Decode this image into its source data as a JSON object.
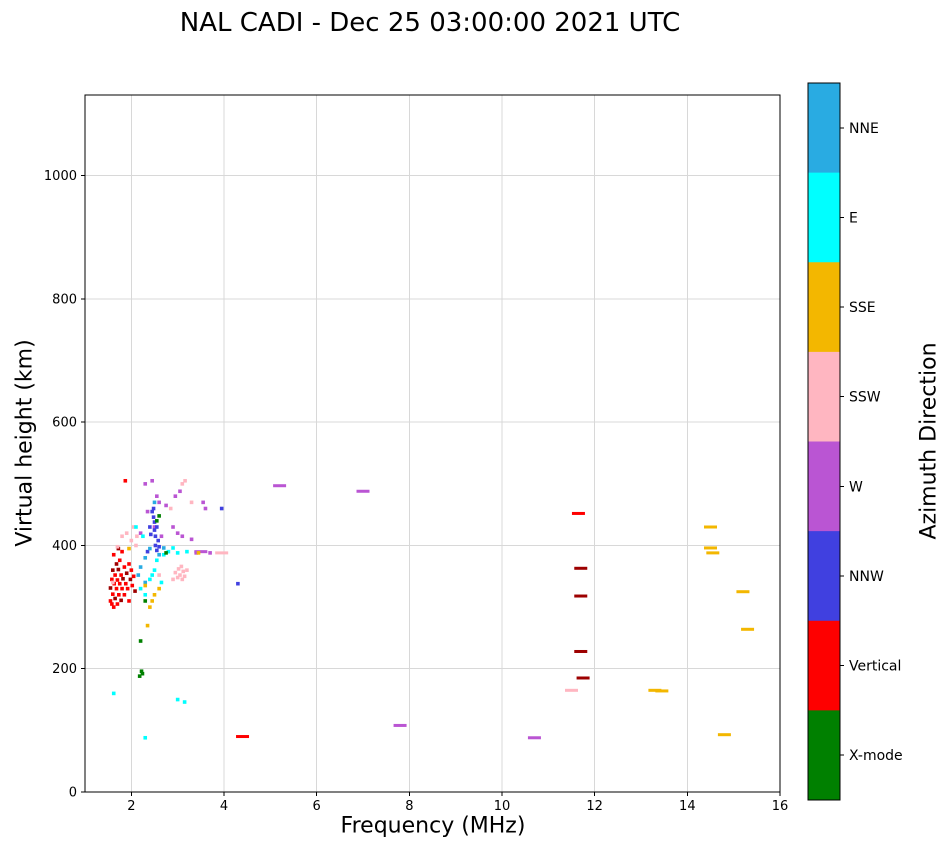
{
  "chart_data": {
    "type": "scatter",
    "title": "NAL CADI - Dec 25 03:00:00 2021 UTC",
    "xlabel": "Frequency (MHz)",
    "ylabel": "Virtual height (km)",
    "xlim": [
      1,
      16
    ],
    "ylim": [
      0,
      1131
    ],
    "xticks": [
      2,
      4,
      6,
      8,
      10,
      12,
      14,
      16
    ],
    "yticks": [
      0,
      200,
      400,
      600,
      800,
      1000
    ],
    "grid": true,
    "grid_color": "#d8d8d8",
    "colorbar": {
      "label": "Azimuth Direction",
      "categories": [
        "NNE",
        "E",
        "SSE",
        "SSW",
        "W",
        "NNW",
        "Vertical",
        "X-mode"
      ],
      "colors": {
        "NNE": "#29ABE2",
        "E": "#00FFFF",
        "SSE": "#F3B700",
        "SSW": "#FFB6C1",
        "W": "#BA55D3",
        "NNW": "#4040E0",
        "Vertical": "#FE0000",
        "X-mode": "#008000"
      }
    },
    "points": [
      [
        5.2,
        497,
        "W",
        "d"
      ],
      [
        7.0,
        488,
        "W",
        "d"
      ],
      [
        7.8,
        108,
        "W",
        "d"
      ],
      [
        10.7,
        88,
        "W",
        "d"
      ],
      [
        11.5,
        165,
        "SSW",
        "d"
      ],
      [
        11.65,
        452,
        "Vertical",
        "d"
      ],
      [
        11.7,
        363,
        "Vertical",
        "d",
        "dk"
      ],
      [
        11.7,
        318,
        "Vertical",
        "d",
        "dk"
      ],
      [
        11.7,
        228,
        "Vertical",
        "d",
        "dk"
      ],
      [
        11.75,
        185,
        "Vertical",
        "d",
        "dk"
      ],
      [
        13.3,
        165,
        "SSE",
        "d"
      ],
      [
        13.45,
        164,
        "SSE",
        "d"
      ],
      [
        14.5,
        430,
        "SSE",
        "d"
      ],
      [
        14.5,
        396,
        "SSE",
        "d"
      ],
      [
        14.55,
        388,
        "SSE",
        "d"
      ],
      [
        15.2,
        325,
        "SSE",
        "d"
      ],
      [
        15.3,
        264,
        "SSE",
        "d"
      ],
      [
        14.8,
        93,
        "SSE",
        "d"
      ],
      [
        4.4,
        90,
        "Vertical",
        "d"
      ],
      [
        4.3,
        338,
        "NNW"
      ],
      [
        2.3,
        88,
        "E"
      ],
      [
        1.62,
        160,
        "E"
      ],
      [
        3.0,
        150,
        "E"
      ],
      [
        3.15,
        146,
        "E"
      ],
      [
        2.2,
        245,
        "X-mode"
      ],
      [
        2.18,
        188,
        "X-mode"
      ],
      [
        2.24,
        192,
        "X-mode"
      ],
      [
        2.22,
        196,
        "X-mode"
      ],
      [
        2.35,
        270,
        "SSE"
      ],
      [
        1.55,
        310,
        "Vertical"
      ],
      [
        1.55,
        331,
        "Vertical",
        "dk"
      ],
      [
        1.58,
        345,
        "Vertical"
      ],
      [
        1.58,
        305,
        "Vertical"
      ],
      [
        1.6,
        321,
        "Vertical"
      ],
      [
        1.6,
        360,
        "Vertical",
        "dk"
      ],
      [
        1.62,
        300,
        "Vertical"
      ],
      [
        1.62,
        385,
        "Vertical"
      ],
      [
        1.63,
        338,
        "Vertical"
      ],
      [
        1.65,
        314,
        "Vertical",
        "dk"
      ],
      [
        1.65,
        352,
        "Vertical"
      ],
      [
        1.68,
        330,
        "Vertical"
      ],
      [
        1.68,
        370,
        "Vertical",
        "dk"
      ],
      [
        1.7,
        305,
        "Vertical"
      ],
      [
        1.7,
        344,
        "Vertical"
      ],
      [
        1.72,
        361,
        "Vertical",
        "dk"
      ],
      [
        1.72,
        395,
        "Vertical",
        "dk"
      ],
      [
        1.73,
        320,
        "Vertical"
      ],
      [
        1.75,
        338,
        "Vertical"
      ],
      [
        1.75,
        376,
        "Vertical"
      ],
      [
        1.78,
        311,
        "Vertical",
        "dk"
      ],
      [
        1.78,
        352,
        "Vertical"
      ],
      [
        1.8,
        330,
        "Vertical"
      ],
      [
        1.8,
        390,
        "Vertical"
      ],
      [
        1.82,
        346,
        "Vertical",
        "dk"
      ],
      [
        1.85,
        320,
        "Vertical"
      ],
      [
        1.85,
        365,
        "Vertical"
      ],
      [
        1.87,
        505,
        "Vertical"
      ],
      [
        1.88,
        338,
        "Vertical"
      ],
      [
        1.9,
        355,
        "Vertical",
        "dk"
      ],
      [
        1.92,
        330,
        "Vertical"
      ],
      [
        1.95,
        310,
        "Vertical"
      ],
      [
        1.95,
        370,
        "Vertical"
      ],
      [
        1.98,
        345,
        "Vertical",
        "dk"
      ],
      [
        2.0,
        360,
        "Vertical"
      ],
      [
        2.02,
        335,
        "Vertical"
      ],
      [
        2.05,
        350,
        "Vertical"
      ],
      [
        2.08,
        326,
        "Vertical",
        "dk"
      ],
      [
        1.6,
        340,
        "SSW"
      ],
      [
        1.7,
        398,
        "SSW"
      ],
      [
        1.8,
        415,
        "SSW"
      ],
      [
        1.9,
        420,
        "SSW"
      ],
      [
        2.0,
        408,
        "SSW"
      ],
      [
        2.05,
        430,
        "SSW"
      ],
      [
        2.1,
        400,
        "SSW"
      ],
      [
        2.12,
        415,
        "SSW"
      ],
      [
        2.6,
        352,
        "SSW"
      ],
      [
        2.85,
        460,
        "SSW"
      ],
      [
        2.9,
        345,
        "SSW"
      ],
      [
        2.95,
        356,
        "SSW"
      ],
      [
        3.0,
        348,
        "SSW"
      ],
      [
        3.02,
        362,
        "SSW"
      ],
      [
        3.05,
        352,
        "SSW"
      ],
      [
        3.08,
        366,
        "SSW"
      ],
      [
        3.1,
        345,
        "SSW"
      ],
      [
        3.1,
        500,
        "SSW"
      ],
      [
        3.12,
        358,
        "SSW"
      ],
      [
        3.15,
        350,
        "SSW"
      ],
      [
        3.16,
        505,
        "SSW"
      ],
      [
        3.2,
        360,
        "SSW"
      ],
      [
        3.3,
        470,
        "SSW"
      ],
      [
        3.95,
        388,
        "SSW",
        "d"
      ],
      [
        2.2,
        420,
        "W"
      ],
      [
        2.3,
        500,
        "W"
      ],
      [
        2.35,
        455,
        "W"
      ],
      [
        2.45,
        505,
        "W"
      ],
      [
        2.5,
        430,
        "W"
      ],
      [
        2.55,
        480,
        "W"
      ],
      [
        2.6,
        470,
        "W"
      ],
      [
        2.65,
        415,
        "W"
      ],
      [
        2.75,
        465,
        "W"
      ],
      [
        2.9,
        430,
        "W"
      ],
      [
        2.95,
        480,
        "W"
      ],
      [
        3.0,
        420,
        "W"
      ],
      [
        3.05,
        488,
        "W"
      ],
      [
        3.1,
        415,
        "W"
      ],
      [
        3.3,
        410,
        "W"
      ],
      [
        3.4,
        388,
        "W"
      ],
      [
        3.5,
        390,
        "W",
        "d"
      ],
      [
        3.55,
        470,
        "W"
      ],
      [
        3.6,
        460,
        "W"
      ],
      [
        3.7,
        388,
        "W"
      ],
      [
        2.35,
        390,
        "NNW"
      ],
      [
        2.4,
        430,
        "NNW"
      ],
      [
        2.42,
        418,
        "NNW"
      ],
      [
        2.45,
        455,
        "NNW"
      ],
      [
        2.48,
        446,
        "NNW"
      ],
      [
        2.48,
        460,
        "NNW"
      ],
      [
        2.5,
        438,
        "NNW"
      ],
      [
        2.5,
        425,
        "NNW"
      ],
      [
        2.52,
        415,
        "NNW"
      ],
      [
        2.52,
        400,
        "NNW"
      ],
      [
        2.55,
        430,
        "NNW"
      ],
      [
        2.55,
        392,
        "NNW"
      ],
      [
        2.58,
        408,
        "NNW"
      ],
      [
        2.6,
        398,
        "NNW"
      ],
      [
        3.95,
        460,
        "NNW"
      ],
      [
        2.15,
        352,
        "NNE"
      ],
      [
        2.2,
        365,
        "NNE"
      ],
      [
        2.3,
        340,
        "NNE"
      ],
      [
        2.3,
        380,
        "NNE"
      ],
      [
        2.4,
        395,
        "NNE"
      ],
      [
        2.5,
        470,
        "NNE"
      ],
      [
        2.6,
        385,
        "NNE"
      ],
      [
        2.7,
        396,
        "NNE"
      ],
      [
        2.1,
        430,
        "E"
      ],
      [
        2.2,
        330,
        "E"
      ],
      [
        2.25,
        415,
        "E"
      ],
      [
        2.3,
        320,
        "E"
      ],
      [
        2.4,
        345,
        "E"
      ],
      [
        2.45,
        352,
        "E"
      ],
      [
        2.5,
        360,
        "E"
      ],
      [
        2.55,
        376,
        "E"
      ],
      [
        2.65,
        340,
        "E"
      ],
      [
        2.7,
        385,
        "E"
      ],
      [
        2.8,
        390,
        "E"
      ],
      [
        2.9,
        396,
        "E"
      ],
      [
        3.0,
        388,
        "E"
      ],
      [
        3.2,
        390,
        "E"
      ],
      [
        2.3,
        310,
        "X-mode"
      ],
      [
        2.55,
        440,
        "X-mode"
      ],
      [
        2.6,
        448,
        "X-mode"
      ],
      [
        2.75,
        388,
        "X-mode"
      ],
      [
        1.95,
        395,
        "SSE"
      ],
      [
        2.3,
        335,
        "SSE"
      ],
      [
        2.4,
        300,
        "SSE"
      ],
      [
        2.45,
        310,
        "SSE"
      ],
      [
        2.5,
        320,
        "SSE"
      ],
      [
        2.6,
        330,
        "SSE"
      ],
      [
        3.45,
        388,
        "SSE"
      ]
    ]
  }
}
